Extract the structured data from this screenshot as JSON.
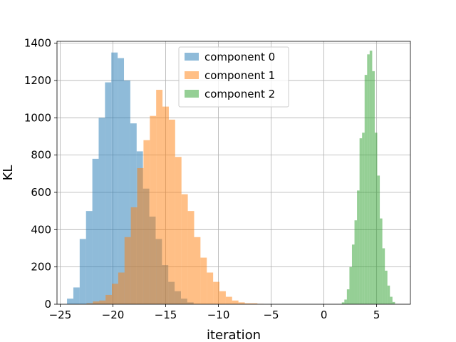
{
  "chart_data": {
    "type": "histogram",
    "xlabel": "iteration",
    "ylabel": "KL",
    "xlim": [
      -25.3,
      8.2
    ],
    "ylim": [
      0,
      1410
    ],
    "xticks": [
      -25,
      -20,
      -15,
      -10,
      -5,
      0,
      5
    ],
    "xtick_labels": [
      "−25",
      "−20",
      "−15",
      "−10",
      "−5",
      "0",
      "5"
    ],
    "yticks": [
      0,
      200,
      400,
      600,
      800,
      1000,
      1200,
      1400
    ],
    "ytick_labels": [
      "0",
      "200",
      "400",
      "600",
      "800",
      "1000",
      "1200",
      "1400"
    ],
    "grid": true,
    "legend_position": "top-center",
    "opacity": 0.5,
    "series": [
      {
        "name": "component 0",
        "color": "#1f77b4",
        "bin_start": -24.35,
        "bin_width": 0.6,
        "values": [
          30,
          90,
          350,
          500,
          780,
          1000,
          1190,
          1350,
          1320,
          1200,
          970,
          820,
          620,
          470,
          350,
          210,
          120,
          70,
          30,
          10
        ]
      },
      {
        "name": "component 1",
        "color": "#ff7f0e",
        "bin_start": -22.5,
        "bin_width": 0.6,
        "values": [
          5,
          15,
          20,
          50,
          110,
          170,
          360,
          520,
          730,
          880,
          1010,
          1150,
          1060,
          990,
          790,
          590,
          500,
          360,
          250,
          170,
          120,
          70,
          40,
          20,
          10,
          5,
          5,
          2
        ]
      },
      {
        "name": "component 2",
        "color": "#2ca02c",
        "bin_start": 1.7,
        "bin_width": 0.24,
        "values": [
          10,
          25,
          80,
          200,
          320,
          450,
          610,
          890,
          920,
          1230,
          1340,
          1360,
          1250,
          920,
          690,
          460,
          300,
          180,
          100,
          40,
          12
        ]
      }
    ]
  }
}
